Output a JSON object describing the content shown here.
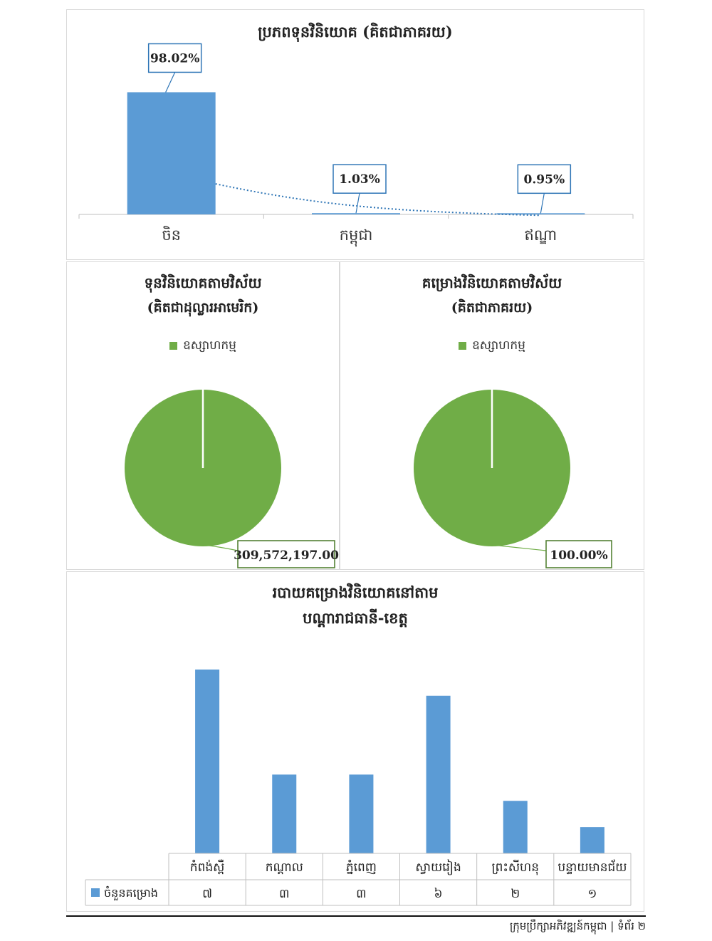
{
  "chart_data": [
    {
      "type": "bar",
      "title": "ប្រភពទុនវិនិយោគ (គិតជាភាគរយ)",
      "categories": [
        "ចិន",
        "កម្ពុជា",
        "ឥណ្ឌា"
      ],
      "values": [
        98.02,
        1.03,
        0.95
      ],
      "data_labels": [
        "98.02%",
        "1.03%",
        "0.95%"
      ],
      "color": "#5b9bd5",
      "trendline": "dotted",
      "ylim": [
        0,
        100
      ]
    },
    {
      "type": "pie",
      "title": "ទុនវិនិយោគតាមវិស័យ",
      "subtitle": "(គិតជាដុល្លារអាមេរិក)",
      "legend": [
        "ឧស្សាហកម្ម"
      ],
      "values": [
        309572197.0
      ],
      "data_labels": [
        "309,572,197.00"
      ],
      "color": "#70ad47",
      "legend_position": "top"
    },
    {
      "type": "pie",
      "title": "គម្រោងវិនិយោគតាមវិស័យ",
      "subtitle": "(គិតជាភាគរយ)",
      "legend": [
        "ឧស្សាហកម្ម"
      ],
      "values": [
        100.0
      ],
      "data_labels": [
        "100.00%"
      ],
      "color": "#70ad47",
      "legend_position": "top"
    },
    {
      "type": "bar",
      "title": "របាយគម្រោងវិនិយោគនៅតាម",
      "subtitle": "បណ្ដារាជធានី-ខេត្ត",
      "categories": [
        "កំពង់ស្ពឺ",
        "កណ្ដាល",
        "ភ្នំពេញ",
        "ស្វាយរៀង",
        "ព្រះសីហនុ",
        "បន្ទាយមានជ័យ"
      ],
      "series": [
        {
          "name": "ចំនួនគម្រោង",
          "values": [
            7,
            3,
            3,
            6,
            2,
            1
          ],
          "labels": [
            "៧",
            "៣",
            "៣",
            "៦",
            "២",
            "១"
          ]
        }
      ],
      "color": "#5b9bd5",
      "data_table": true,
      "ylim": [
        0,
        8
      ]
    }
  ],
  "footer": {
    "text": "ក្រុមប្រឹក្សាអភិវឌ្ឍន៍កម្ពុជា | ទំព័រ ២"
  }
}
